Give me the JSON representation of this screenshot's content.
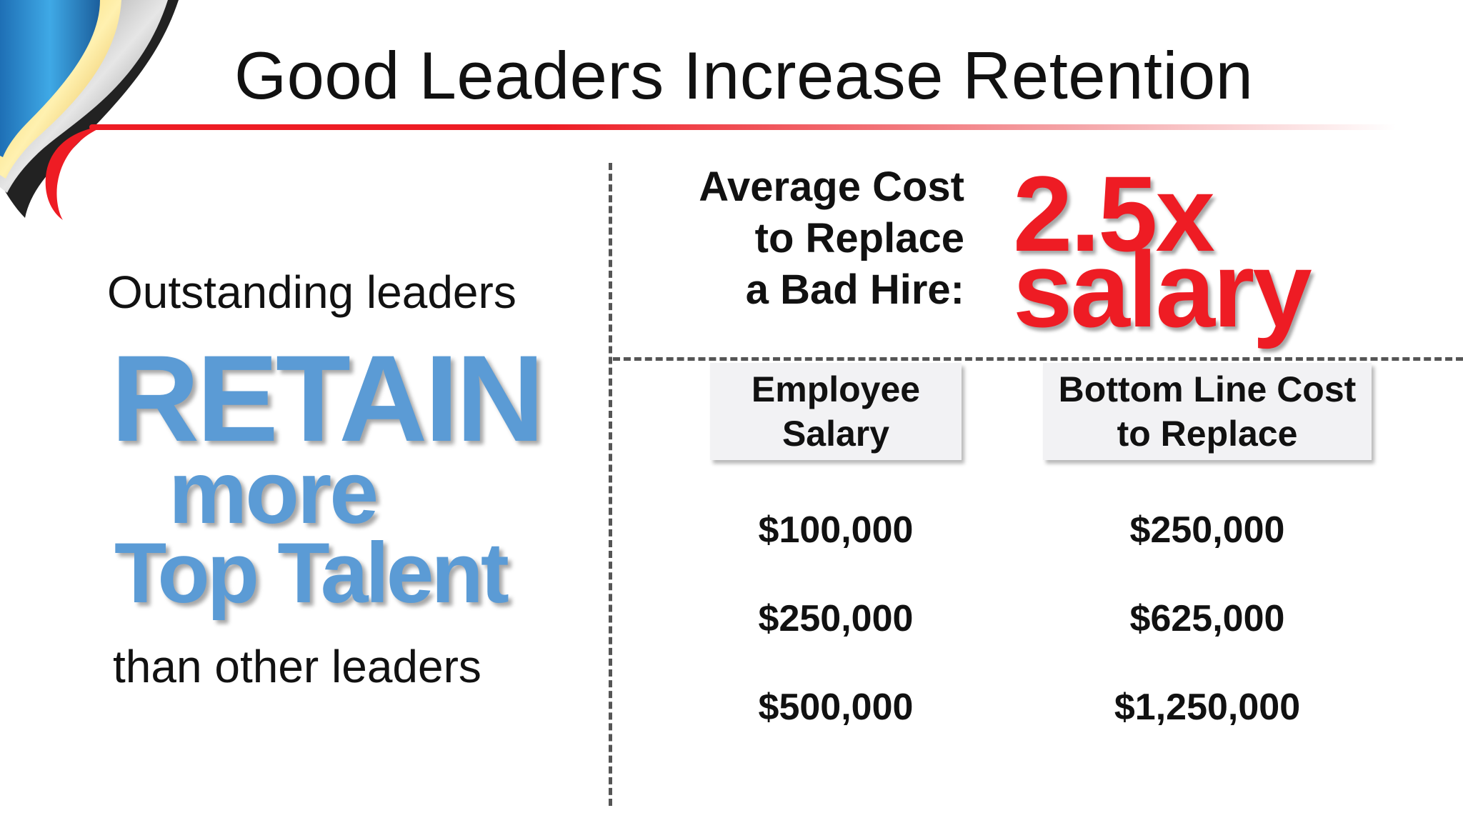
{
  "title": "Good Leaders Increase Retention",
  "left": {
    "lead": "Outstanding leaders",
    "retain": "RETAIN",
    "more": "more",
    "talent": "Top Talent",
    "trail": "than other leaders"
  },
  "cost": {
    "label_line1": "Average Cost",
    "label_line2": "to Replace",
    "label_line3": "a Bad Hire:",
    "multiplier": "2.5x",
    "unit": "salary"
  },
  "table": {
    "headers": [
      {
        "line1": "Employee",
        "line2": "Salary"
      },
      {
        "line1": "Bottom Line Cost",
        "line2": "to Replace"
      }
    ],
    "rows": [
      {
        "salary": "$100,000",
        "cost": "$250,000"
      },
      {
        "salary": "$250,000",
        "cost": "$625,000"
      },
      {
        "salary": "$500,000",
        "cost": "$1,250,000"
      }
    ]
  },
  "colors": {
    "accent_red": "#ee1c24",
    "accent_blue": "#5b9bd5"
  }
}
